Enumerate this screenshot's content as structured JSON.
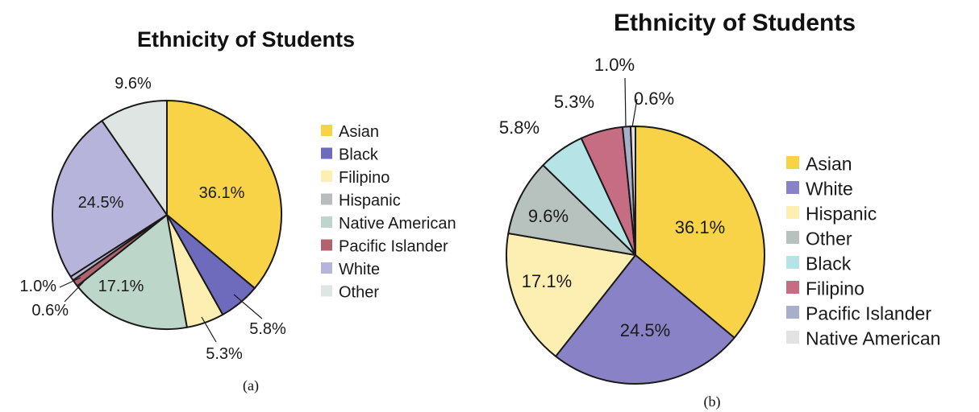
{
  "chart_data": [
    {
      "type": "pie",
      "title": "Ethnicity of Students",
      "caption": "(a)",
      "slices": [
        {
          "label": "Asian",
          "value": 36.1,
          "display": "36.1%",
          "color": "#f8d247"
        },
        {
          "label": "Black",
          "value": 5.8,
          "display": "5.8%",
          "color": "#6e6bbd"
        },
        {
          "label": "Filipino",
          "value": 5.3,
          "display": "5.3%",
          "color": "#fcefb1"
        },
        {
          "label": "Hispanic",
          "value": 0,
          "display": "",
          "color": "#b9bcbd"
        },
        {
          "label": "Native American",
          "value": 17.1,
          "display": "17.1%",
          "color": "#bcd6c9"
        },
        {
          "label": "Pacific Islander",
          "value": 1.0,
          "display": "1.0%",
          "color": "#b0636e"
        },
        {
          "label": "",
          "value": 0.6,
          "display": "0.6%",
          "color": "#b7b8d4"
        },
        {
          "label": "White",
          "value": 24.5,
          "display": "24.5%",
          "color": "#b7b4dc"
        },
        {
          "label": "Other",
          "value": 9.6,
          "display": "9.6%",
          "color": "#dfe5e2"
        }
      ],
      "legend": [
        {
          "label": "Asian",
          "color": "#f8d247"
        },
        {
          "label": "Black",
          "color": "#6e6bbd"
        },
        {
          "label": "Filipino",
          "color": "#fcefb1"
        },
        {
          "label": "Hispanic",
          "color": "#b9bcbd"
        },
        {
          "label": "Native American",
          "color": "#bcd6c9"
        },
        {
          "label": "Pacific Islander",
          "color": "#b0636e"
        },
        {
          "label": "White",
          "color": "#b7b4dc"
        },
        {
          "label": "Other",
          "color": "#dfe5e2"
        }
      ],
      "legend_position": "right"
    },
    {
      "type": "pie",
      "title": "Ethnicity of Students",
      "caption": "(b)",
      "slices": [
        {
          "label": "Asian",
          "value": 36.1,
          "display": "36.1%",
          "color": "#f8d247"
        },
        {
          "label": "White",
          "value": 24.5,
          "display": "24.5%",
          "color": "#8a82c6"
        },
        {
          "label": "Hispanic",
          "value": 17.1,
          "display": "17.1%",
          "color": "#fcefb1"
        },
        {
          "label": "Other",
          "value": 9.6,
          "display": "9.6%",
          "color": "#b7c2bf"
        },
        {
          "label": "Black",
          "value": 5.8,
          "display": "5.8%",
          "color": "#b6e3e5"
        },
        {
          "label": "Filipino",
          "value": 5.3,
          "display": "5.3%",
          "color": "#c66d83"
        },
        {
          "label": "Pacific Islander",
          "value": 1.0,
          "display": "1.0%",
          "color": "#a8afc8"
        },
        {
          "label": "Native American",
          "value": 0.6,
          "display": "0.6%",
          "color": "#e2e2e2"
        }
      ],
      "legend": [
        {
          "label": "Asian",
          "color": "#f8d247"
        },
        {
          "label": "White",
          "color": "#8a82c6"
        },
        {
          "label": "Hispanic",
          "color": "#fcefb1"
        },
        {
          "label": "Other",
          "color": "#b7c2bf"
        },
        {
          "label": "Black",
          "color": "#b6e3e5"
        },
        {
          "label": "Filipino",
          "color": "#c66d83"
        },
        {
          "label": "Pacific Islander",
          "color": "#a8afc8"
        },
        {
          "label": "Native American",
          "color": "#e2e2e2"
        }
      ],
      "legend_position": "right"
    }
  ]
}
